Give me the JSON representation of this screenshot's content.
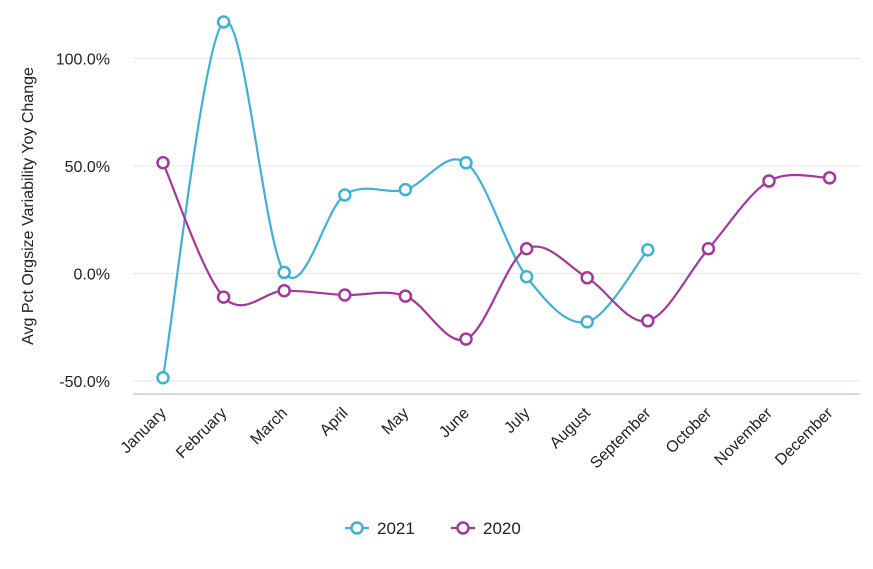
{
  "chart_data": {
    "type": "line",
    "ylabel": "Avg Pct Orgsize Variability Yoy Change",
    "xlabel": "",
    "categories": [
      "January",
      "February",
      "March",
      "April",
      "May",
      "June",
      "July",
      "August",
      "September",
      "October",
      "November",
      "December"
    ],
    "ylim": [
      -55,
      117
    ],
    "yticks": [
      -50,
      0,
      50,
      100
    ],
    "ytick_labels": [
      "-50.0%",
      "0.0%",
      "50.0%",
      "100.0%"
    ],
    "grid": true,
    "legend_position": "bottom-center",
    "series": [
      {
        "name": "2021",
        "color": "#3fb1d3",
        "values": [
          -48.5,
          117,
          0.5,
          36.5,
          39,
          51.5,
          -1.5,
          -22.5,
          11,
          null,
          null,
          null
        ]
      },
      {
        "name": "2020",
        "color": "#a3389b",
        "values": [
          51.5,
          -11,
          -8,
          -10,
          -10.5,
          -30.5,
          11.5,
          -2,
          -22,
          11.5,
          43,
          44.5
        ]
      }
    ]
  }
}
